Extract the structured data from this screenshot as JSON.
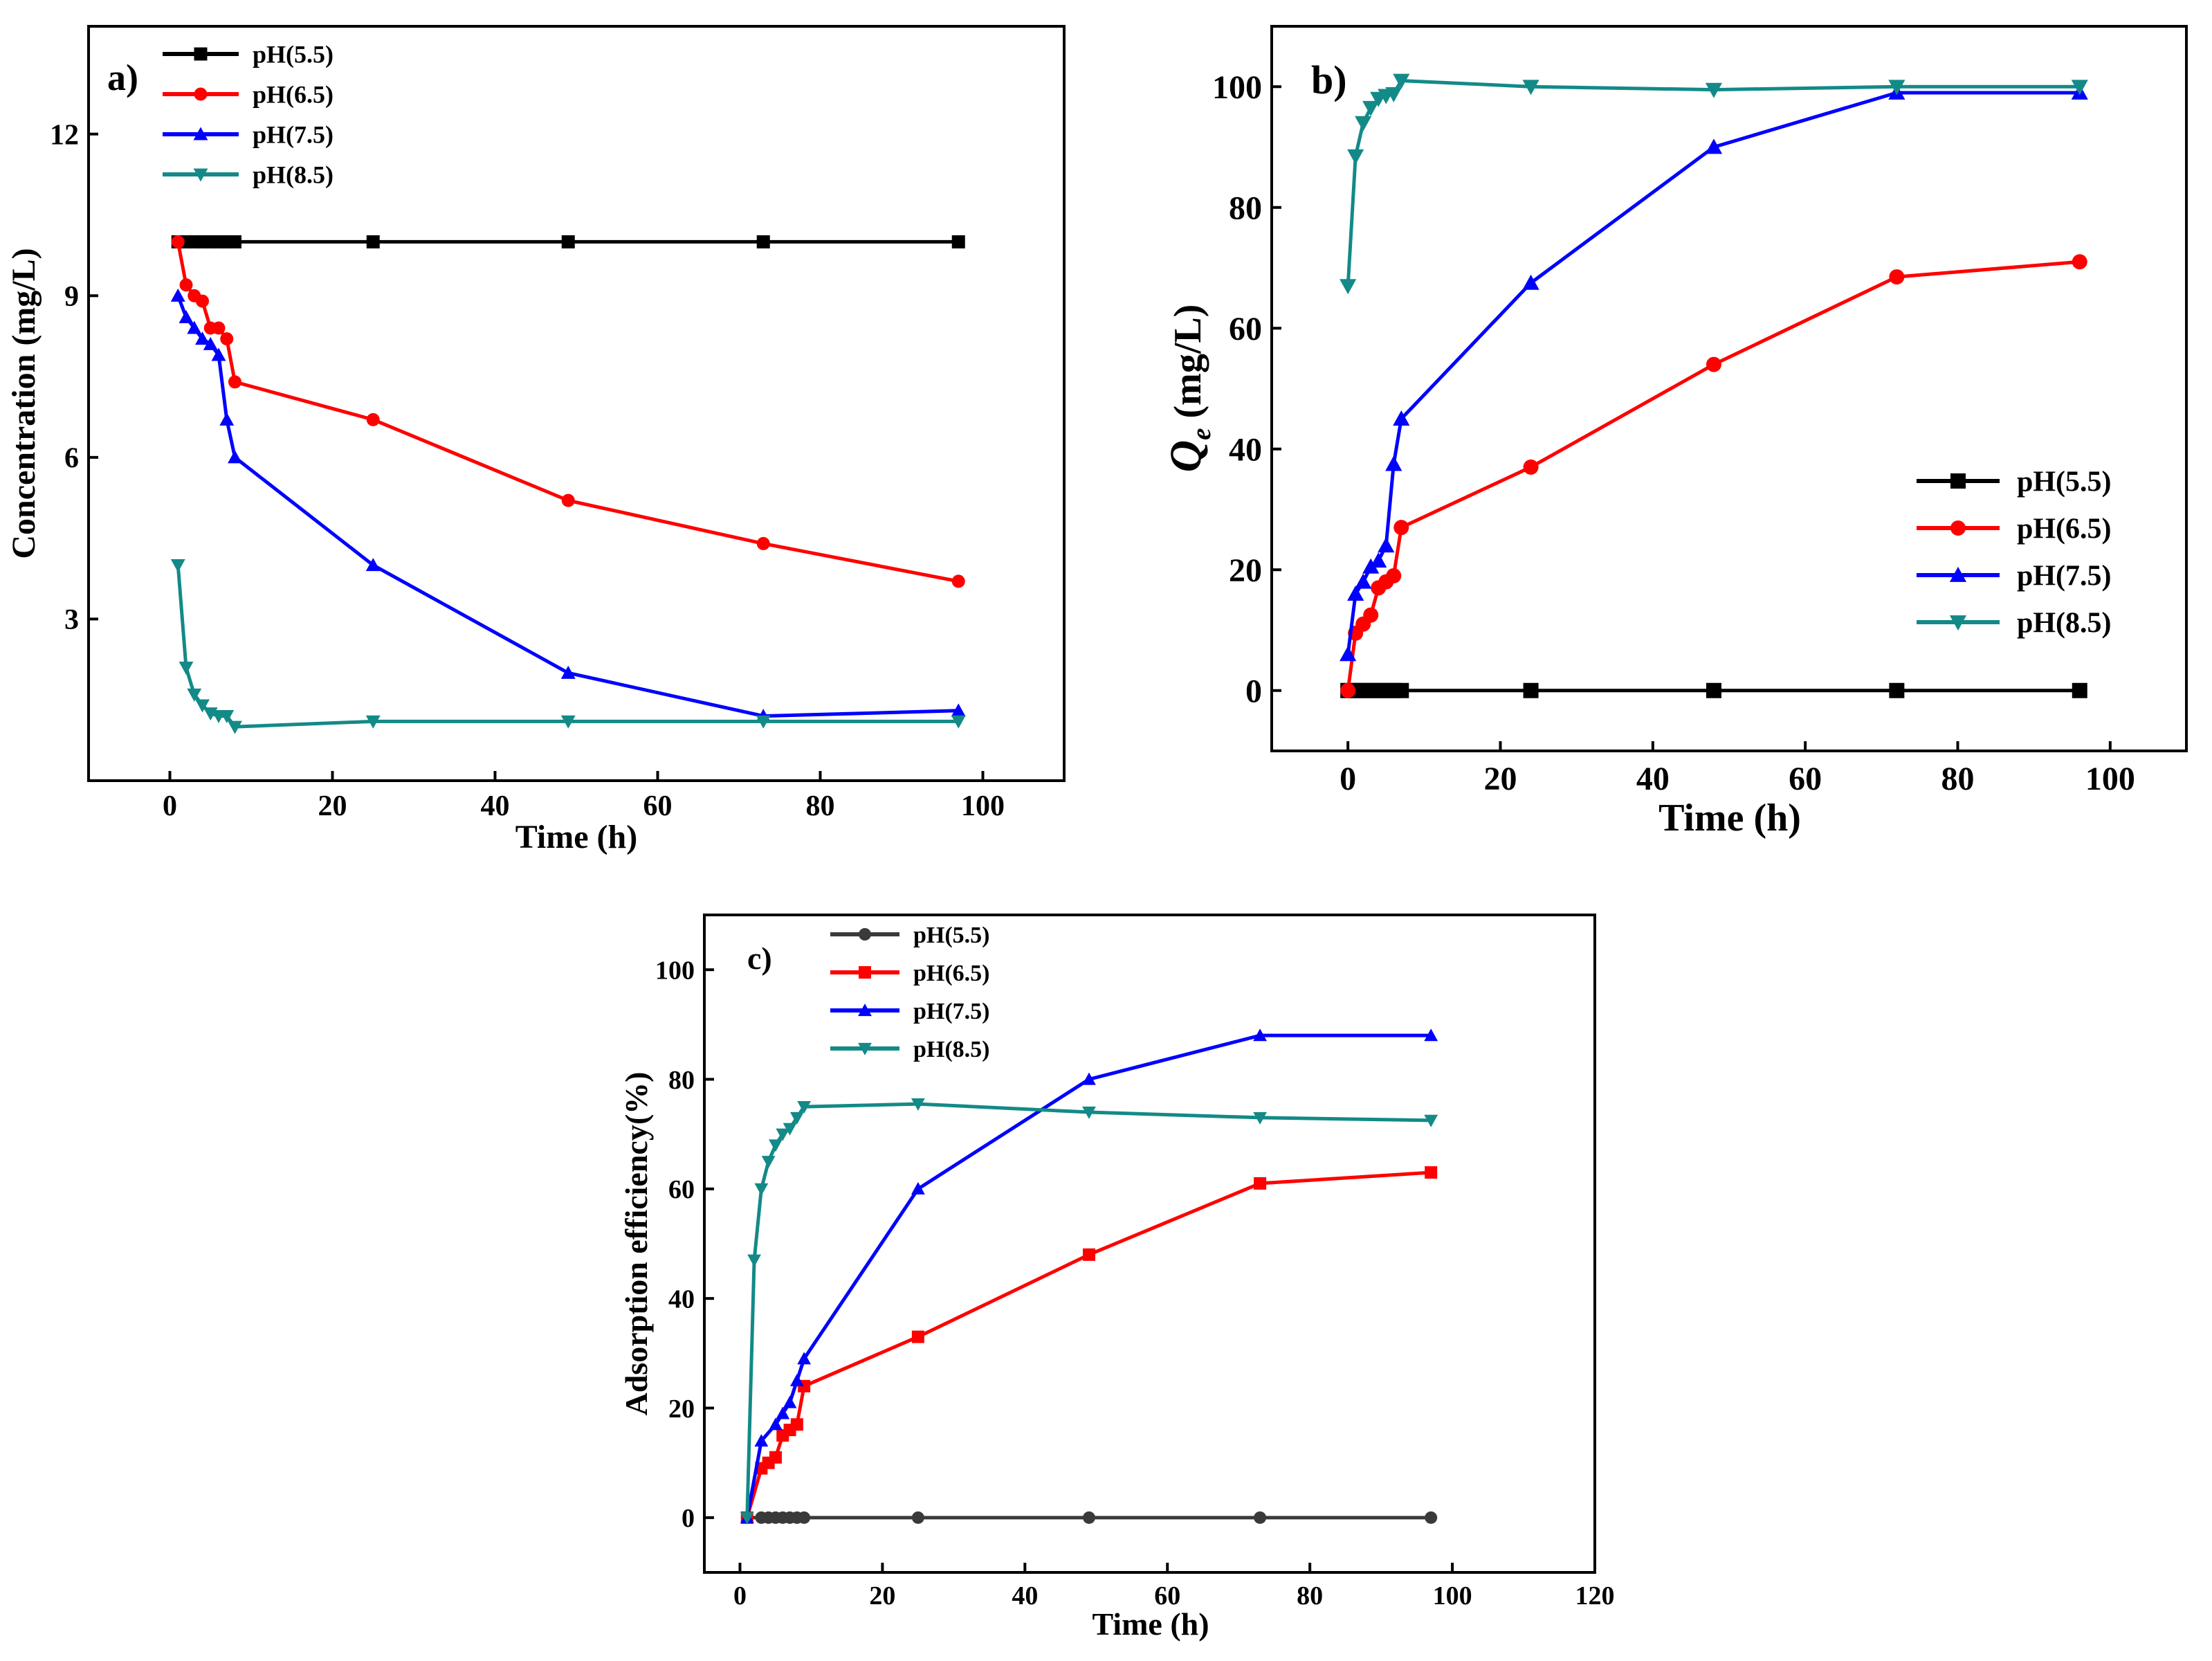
{
  "chart_data": [
    {
      "type": "line",
      "panel_label": "a)",
      "title": "",
      "xlabel": "Time (h)",
      "ylabel": "Concentration (mg/L)",
      "xlim": [
        -10,
        110
      ],
      "ylim": [
        0,
        14
      ],
      "xticks": [
        "0",
        "20",
        "40",
        "60",
        "80",
        "100"
      ],
      "yticks": [
        "3",
        "6",
        "9",
        "12"
      ],
      "legend_position": "top-left",
      "series": [
        {
          "name": "pH(5.5)",
          "color": "#000000",
          "marker": "square",
          "x": [
            1,
            2,
            3,
            4,
            5,
            6,
            7,
            8,
            25,
            49,
            73,
            97
          ],
          "y": [
            10,
            10,
            10,
            10,
            10,
            10,
            10,
            10,
            10,
            10,
            10,
            10
          ]
        },
        {
          "name": "pH(6.5)",
          "color": "#ff0000",
          "marker": "circle",
          "x": [
            1,
            2,
            3,
            4,
            5,
            6,
            7,
            8,
            25,
            49,
            73,
            97
          ],
          "y": [
            10,
            9.2,
            9.0,
            8.9,
            8.4,
            8.4,
            8.2,
            7.4,
            6.7,
            5.2,
            4.4,
            3.7
          ]
        },
        {
          "name": "pH(7.5)",
          "color": "#0000ff",
          "marker": "triangle-up",
          "x": [
            1,
            2,
            3,
            4,
            5,
            6,
            7,
            8,
            25,
            49,
            73,
            97
          ],
          "y": [
            9.0,
            8.6,
            8.4,
            8.2,
            8.1,
            7.9,
            6.7,
            6.0,
            4.0,
            2.0,
            1.2,
            1.3
          ]
        },
        {
          "name": "pH(8.5)",
          "color": "#138a87",
          "marker": "triangle-down",
          "x": [
            1,
            2,
            3,
            4,
            5,
            6,
            7,
            8,
            25,
            49,
            73,
            97
          ],
          "y": [
            4.0,
            2.1,
            1.6,
            1.4,
            1.25,
            1.2,
            1.2,
            1.0,
            1.1,
            1.1,
            1.1,
            1.1
          ]
        }
      ]
    },
    {
      "type": "line",
      "panel_label": "b)",
      "title": "",
      "xlabel": "Time (h)",
      "ylabel_main": "Q",
      "ylabel_sub": "e",
      "ylabel_rest": " (mg/L)",
      "xlim": [
        -10,
        110
      ],
      "ylim": [
        -10,
        110
      ],
      "xticks": [
        "0",
        "20",
        "40",
        "60",
        "80",
        "100"
      ],
      "yticks": [
        "0",
        "20",
        "40",
        "60",
        "80",
        "100"
      ],
      "legend_position": "center-right",
      "series": [
        {
          "name": "pH(5.5)",
          "color": "#000000",
          "marker": "square",
          "x": [
            0,
            1,
            2,
            3,
            4,
            5,
            6,
            7,
            24,
            48,
            72,
            96
          ],
          "y": [
            0,
            0,
            0,
            0,
            0,
            0,
            0,
            0,
            0,
            0,
            0,
            0
          ]
        },
        {
          "name": "pH(6.5)",
          "color": "#ff0000",
          "marker": "circle",
          "x": [
            0,
            1,
            2,
            3,
            4,
            5,
            6,
            7,
            24,
            48,
            72,
            96
          ],
          "y": [
            0,
            9.5,
            11,
            12.5,
            17,
            18,
            19,
            27,
            37,
            54,
            68.5,
            71
          ]
        },
        {
          "name": "pH(7.5)",
          "color": "#0000ff",
          "marker": "triangle-up",
          "x": [
            0,
            1,
            2,
            3,
            4,
            5,
            6,
            7,
            24,
            48,
            72,
            96
          ],
          "y": [
            6,
            16,
            18,
            20.5,
            21.5,
            24,
            37.5,
            45,
            67.5,
            90,
            99,
            99
          ]
        },
        {
          "name": "pH(8.5)",
          "color": "#138a87",
          "marker": "triangle-down",
          "x": [
            0,
            1,
            2,
            3,
            4,
            5,
            6,
            7,
            24,
            48,
            72,
            96
          ],
          "y": [
            67,
            88.5,
            94,
            96.5,
            98,
            98.5,
            98.8,
            101,
            100,
            99.5,
            100,
            100
          ]
        }
      ]
    },
    {
      "type": "line",
      "panel_label": "c)",
      "title": "",
      "xlabel": "Time (h)",
      "ylabel": "Adsorption efficiency(%)",
      "xlim": [
        -5,
        120
      ],
      "ylim": [
        -10,
        110
      ],
      "xticks": [
        "0",
        "20",
        "40",
        "60",
        "80",
        "100",
        "120"
      ],
      "yticks": [
        "0",
        "20",
        "40",
        "60",
        "80",
        "100"
      ],
      "legend_position": "top-left",
      "series": [
        {
          "name": "pH(5.5)",
          "color": "#3a3a3a",
          "marker": "circle",
          "x": [
            1,
            3,
            4,
            5,
            6,
            7,
            8,
            9,
            25,
            49,
            73,
            97
          ],
          "y": [
            0,
            0,
            0,
            0,
            0,
            0,
            0,
            0,
            0,
            0,
            0,
            0
          ]
        },
        {
          "name": "pH(6.5)",
          "color": "#ff0000",
          "marker": "square",
          "x": [
            1,
            3,
            4,
            5,
            6,
            7,
            8,
            9,
            25,
            49,
            73,
            97
          ],
          "y": [
            0,
            9,
            10,
            11,
            15,
            16,
            17,
            24,
            33,
            48,
            61,
            63
          ]
        },
        {
          "name": "pH(7.5)",
          "color": "#0000ff",
          "marker": "triangle-up",
          "x": [
            1,
            3,
            5,
            6,
            7,
            8,
            9,
            25,
            49,
            73,
            97
          ],
          "y": [
            0,
            14,
            17,
            19,
            21,
            25,
            29,
            60,
            80,
            88,
            88
          ]
        },
        {
          "name": "pH(8.5)",
          "color": "#138a87",
          "marker": "triangle-down",
          "x": [
            1,
            2,
            3,
            4,
            5,
            6,
            7,
            8,
            9,
            25,
            49,
            73,
            97
          ],
          "y": [
            0,
            47,
            60,
            65,
            68,
            70,
            71,
            73,
            75,
            75.5,
            74,
            73,
            72.5
          ]
        }
      ]
    }
  ]
}
